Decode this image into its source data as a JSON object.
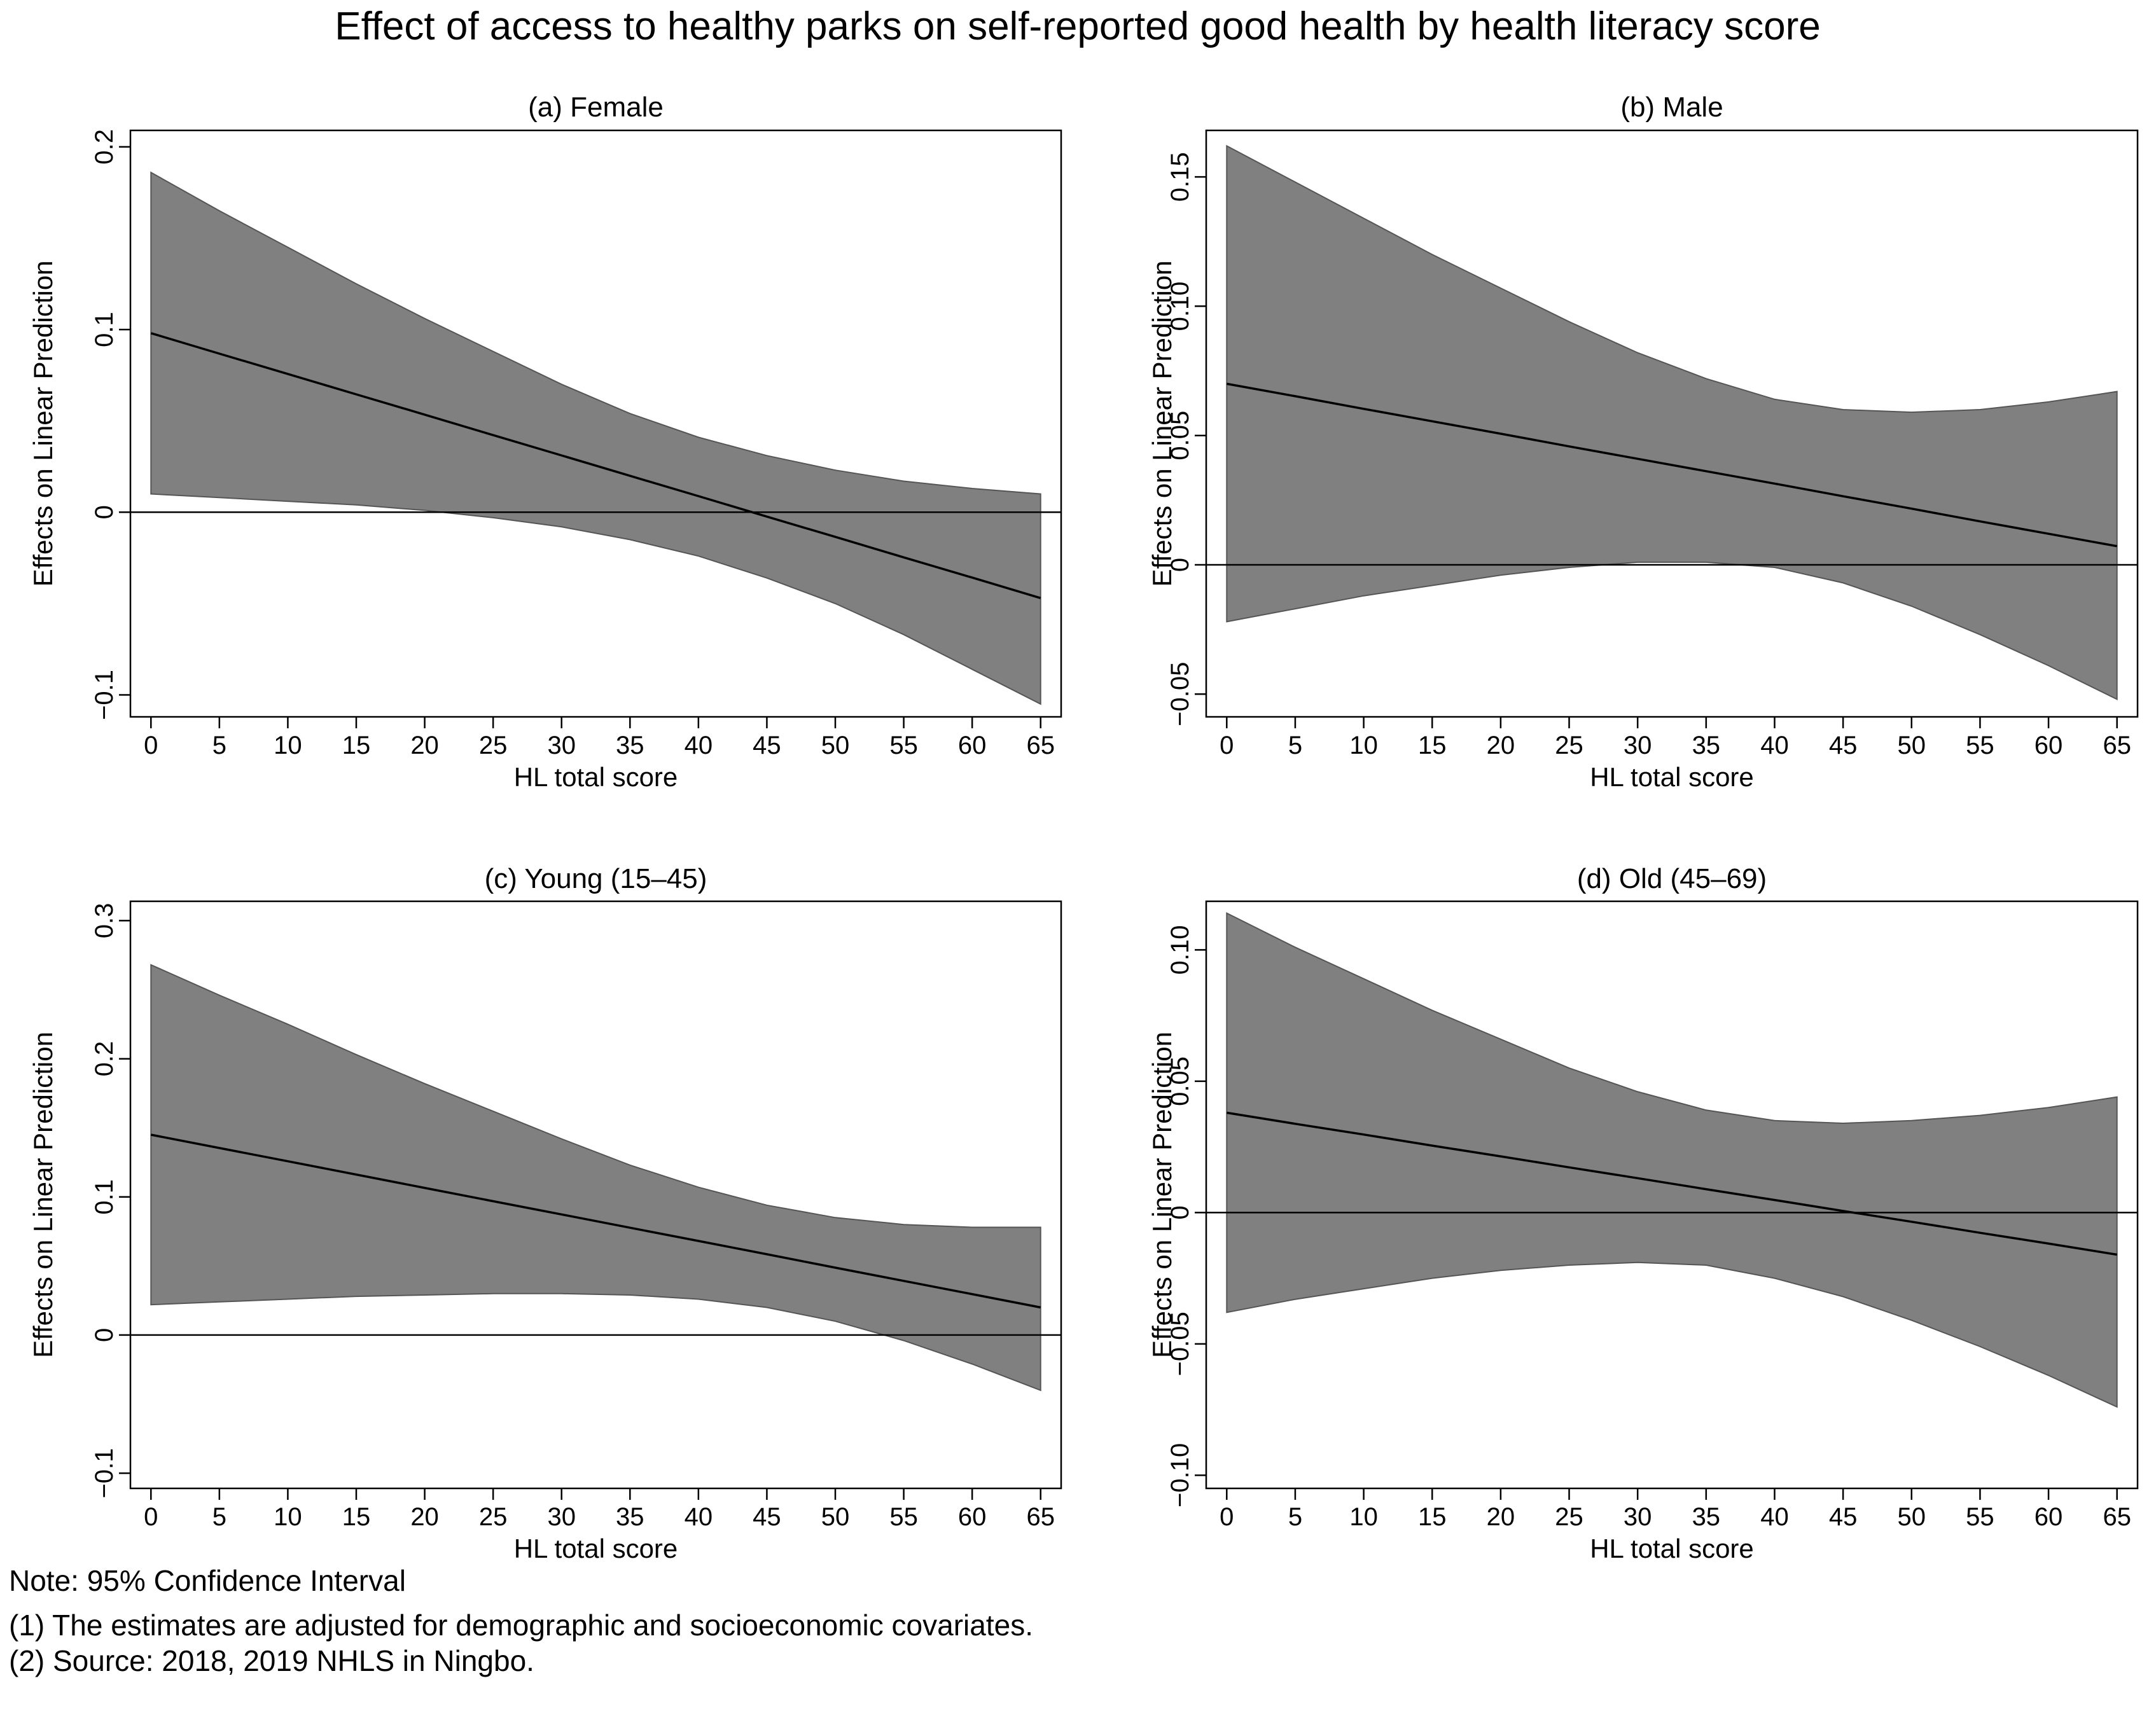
{
  "figure_title": "Effect of access to healthy parks on self-reported good health by health literacy score",
  "notes": {
    "title": "Note: 95% Confidence Interval",
    "line1": "(1) The estimates are adjusted for demographic and socioeconomic covariates.",
    "line2": "(2) Source: 2018, 2019 NHLS in Ningbo."
  },
  "colors": {
    "band": "#808080",
    "band_edge": "#555555",
    "line": "#000000",
    "frame": "#000000"
  },
  "chart_data": [
    {
      "type": "area",
      "title": "(a) Female",
      "xlabel": "HL total score",
      "ylabel": "Effects on Linear Prediction",
      "xlim": [
        -1.5,
        66.5
      ],
      "ylim": [
        -0.112,
        0.209
      ],
      "xticks": [
        0,
        5,
        10,
        15,
        20,
        25,
        30,
        35,
        40,
        45,
        50,
        55,
        60,
        65
      ],
      "yticks": [
        -0.1,
        0,
        0.1,
        0.2
      ],
      "ytick_labels": [
        "−0.1",
        "0",
        "0.1",
        "0.2"
      ],
      "zero_line": true,
      "x": [
        0,
        5,
        10,
        15,
        20,
        25,
        30,
        35,
        40,
        45,
        50,
        55,
        60,
        65
      ],
      "estimate": [
        0.098,
        0.0868,
        0.0757,
        0.0645,
        0.0534,
        0.0422,
        0.0311,
        0.0199,
        0.0088,
        -0.0024,
        -0.0135,
        -0.0247,
        -0.0358,
        -0.047
      ],
      "ci_upper": [
        0.186,
        0.165,
        0.145,
        0.125,
        0.106,
        0.088,
        0.07,
        0.054,
        0.041,
        0.031,
        0.023,
        0.017,
        0.013,
        0.01
      ],
      "ci_lower": [
        0.01,
        0.008,
        0.006,
        0.004,
        0.001,
        -0.003,
        -0.008,
        -0.015,
        -0.024,
        -0.036,
        -0.05,
        -0.067,
        -0.086,
        -0.105
      ]
    },
    {
      "type": "area",
      "title": "(b) Male",
      "xlabel": "HL total score",
      "ylabel": "Effects on Linear Prediction",
      "xlim": [
        -1.5,
        66.5
      ],
      "ylim": [
        -0.0588,
        0.168
      ],
      "xticks": [
        0,
        5,
        10,
        15,
        20,
        25,
        30,
        35,
        40,
        45,
        50,
        55,
        60,
        65
      ],
      "yticks": [
        -0.05,
        0,
        0.05,
        0.1,
        0.15
      ],
      "ytick_labels": [
        "−0.05",
        "0",
        "0.05",
        "0.10",
        "0.15"
      ],
      "zero_line": true,
      "x": [
        0,
        5,
        10,
        15,
        20,
        25,
        30,
        35,
        40,
        45,
        50,
        55,
        60,
        65
      ],
      "estimate": [
        0.07,
        0.0652,
        0.0603,
        0.0555,
        0.0507,
        0.0458,
        0.041,
        0.0362,
        0.0314,
        0.0265,
        0.0217,
        0.0168,
        0.012,
        0.0072
      ],
      "ci_upper": [
        0.162,
        0.148,
        0.134,
        0.12,
        0.107,
        0.094,
        0.082,
        0.072,
        0.064,
        0.06,
        0.059,
        0.06,
        0.063,
        0.067
      ],
      "ci_lower": [
        -0.022,
        -0.017,
        -0.012,
        -0.008,
        -0.004,
        -0.001,
        0.001,
        0.001,
        -0.001,
        -0.007,
        -0.016,
        -0.027,
        -0.039,
        -0.052
      ]
    },
    {
      "type": "area",
      "title": "(c) Young (15–45)",
      "xlabel": "HL total score",
      "ylabel": "Effects on Linear Prediction",
      "xlim": [
        -1.5,
        66.5
      ],
      "ylim": [
        -0.111,
        0.314
      ],
      "xticks": [
        0,
        5,
        10,
        15,
        20,
        25,
        30,
        35,
        40,
        45,
        50,
        55,
        60,
        65
      ],
      "yticks": [
        -0.1,
        0,
        0.1,
        0.2,
        0.3
      ],
      "ytick_labels": [
        "−0.1",
        "0",
        "0.1",
        "0.2",
        "0.3"
      ],
      "zero_line": true,
      "x": [
        0,
        5,
        10,
        15,
        20,
        25,
        30,
        35,
        40,
        45,
        50,
        55,
        60,
        65
      ],
      "estimate": [
        0.145,
        0.1354,
        0.1258,
        0.1162,
        0.1065,
        0.0969,
        0.0873,
        0.0777,
        0.0681,
        0.0585,
        0.0488,
        0.0392,
        0.0296,
        0.02
      ],
      "ci_upper": [
        0.268,
        0.246,
        0.225,
        0.203,
        0.182,
        0.162,
        0.142,
        0.123,
        0.107,
        0.094,
        0.085,
        0.08,
        0.078,
        0.078
      ],
      "ci_lower": [
        0.022,
        0.024,
        0.026,
        0.028,
        0.029,
        0.03,
        0.03,
        0.029,
        0.026,
        0.02,
        0.01,
        -0.004,
        -0.021,
        -0.04
      ]
    },
    {
      "type": "area",
      "title": "(d) Old (45–69)",
      "xlabel": "HL total score",
      "ylabel": "Effects on Linear Prediction",
      "xlim": [
        -1.5,
        66.5
      ],
      "ylim": [
        -0.105,
        0.1185
      ],
      "xticks": [
        0,
        5,
        10,
        15,
        20,
        25,
        30,
        35,
        40,
        45,
        50,
        55,
        60,
        65
      ],
      "yticks": [
        -0.1,
        -0.05,
        0,
        0.05,
        0.1
      ],
      "ytick_labels": [
        "−0.10",
        "−0.05",
        "0",
        "0.05",
        "0.10"
      ],
      "zero_line": true,
      "x": [
        0,
        5,
        10,
        15,
        20,
        25,
        30,
        35,
        40,
        45,
        50,
        55,
        60,
        65
      ],
      "estimate": [
        0.038,
        0.0338,
        0.0297,
        0.0255,
        0.0214,
        0.0172,
        0.0131,
        0.0089,
        0.0048,
        0.0006,
        -0.0035,
        -0.0077,
        -0.0118,
        -0.016
      ],
      "ci_upper": [
        0.114,
        0.101,
        0.089,
        0.077,
        0.066,
        0.055,
        0.046,
        0.039,
        0.035,
        0.034,
        0.035,
        0.037,
        0.04,
        0.044
      ],
      "ci_lower": [
        -0.038,
        -0.033,
        -0.029,
        -0.025,
        -0.022,
        -0.02,
        -0.019,
        -0.02,
        -0.025,
        -0.032,
        -0.041,
        -0.051,
        -0.062,
        -0.074
      ]
    }
  ]
}
